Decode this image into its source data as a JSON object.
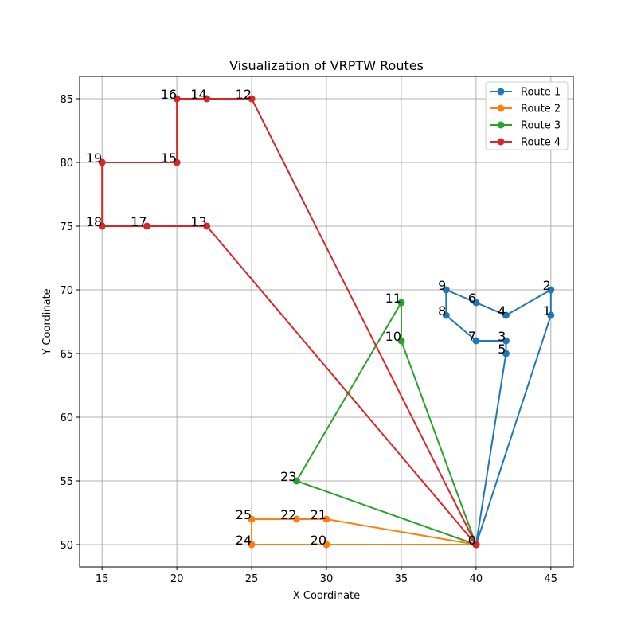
{
  "chart_data": {
    "type": "line",
    "title": "Visualization of VRPTW Routes",
    "xlabel": "X Coordinate",
    "ylabel": "Y Coordinate",
    "xlim": [
      13.5,
      46.5
    ],
    "ylim": [
      48.25,
      86.75
    ],
    "x_ticks": [
      15,
      20,
      25,
      30,
      35,
      40,
      45
    ],
    "y_ticks": [
      50,
      55,
      60,
      65,
      70,
      75,
      80,
      85
    ],
    "grid": true,
    "legend_position": "top-right",
    "nodes": {
      "0": [
        40,
        50
      ],
      "1": [
        45,
        68
      ],
      "2": [
        45,
        70
      ],
      "3": [
        42,
        66
      ],
      "4": [
        42,
        68
      ],
      "5": [
        42,
        65
      ],
      "6": [
        40,
        69
      ],
      "7": [
        40,
        66
      ],
      "8": [
        38,
        68
      ],
      "9": [
        38,
        70
      ],
      "10": [
        35,
        66
      ],
      "11": [
        35,
        69
      ],
      "12": [
        25,
        85
      ],
      "13": [
        22,
        75
      ],
      "14": [
        22,
        85
      ],
      "15": [
        20,
        80
      ],
      "16": [
        20,
        85
      ],
      "17": [
        18,
        75
      ],
      "18": [
        15,
        75
      ],
      "19": [
        15,
        80
      ],
      "20": [
        30,
        50
      ],
      "21": [
        30,
        52
      ],
      "22": [
        28,
        52
      ],
      "23": [
        28,
        55
      ],
      "24": [
        25,
        50
      ],
      "25": [
        25,
        52
      ]
    },
    "series": [
      {
        "name": "Route 1",
        "color": "#1f77b4",
        "route": [
          0,
          5,
          3,
          7,
          8,
          9,
          6,
          4,
          2,
          1,
          0
        ]
      },
      {
        "name": "Route 2",
        "color": "#ff7f0e",
        "route": [
          0,
          20,
          24,
          25,
          22,
          21,
          0
        ]
      },
      {
        "name": "Route 3",
        "color": "#2ca02c",
        "route": [
          0,
          23,
          11,
          10,
          0
        ]
      },
      {
        "name": "Route 4",
        "color": "#d62728",
        "route": [
          0,
          13,
          17,
          18,
          19,
          15,
          16,
          14,
          12,
          0
        ]
      }
    ]
  }
}
